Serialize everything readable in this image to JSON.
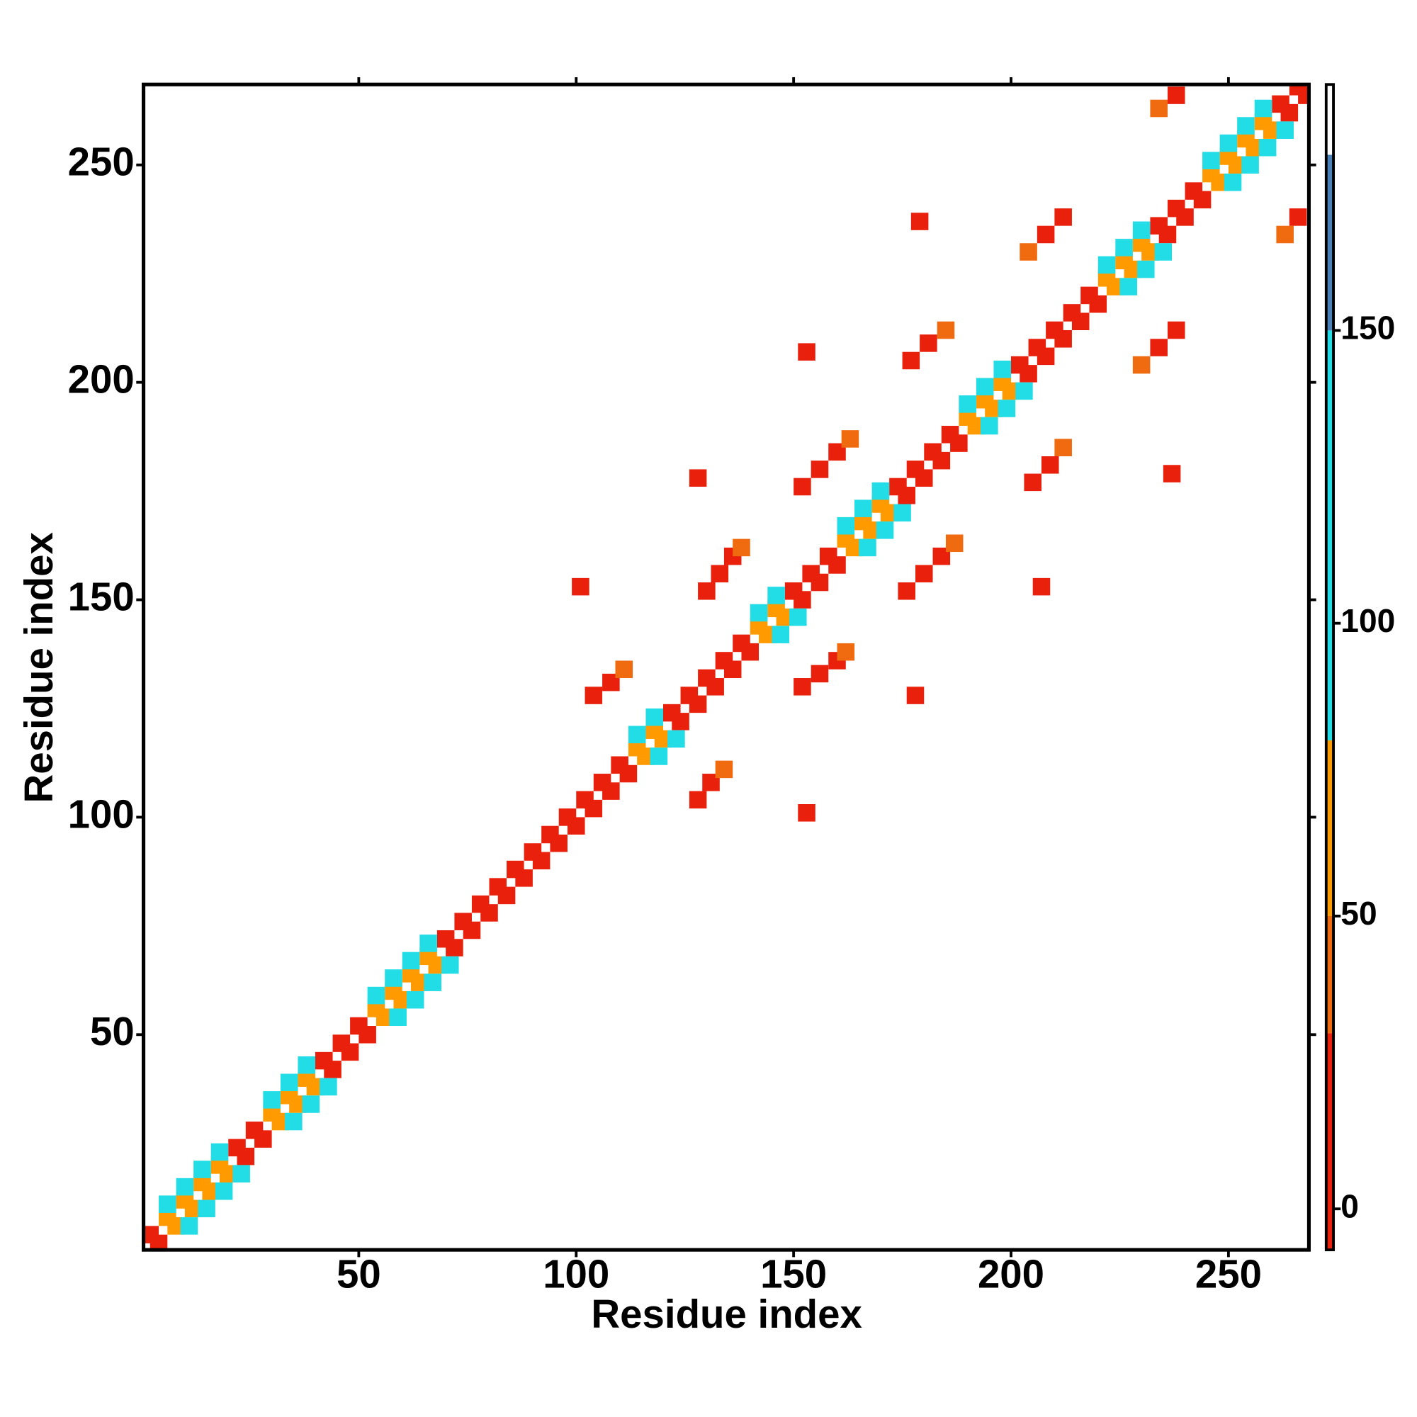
{
  "chart_data": {
    "type": "heatmap",
    "xlabel": "Residue index",
    "ylabel": "Residue index",
    "xlim": [
      0.5,
      268.5
    ],
    "ylim": [
      0.5,
      268.5
    ],
    "xticks": [
      50,
      100,
      150,
      200,
      250
    ],
    "yticks": [
      50,
      100,
      150,
      200,
      250
    ],
    "colorbar": {
      "lim": [
        -7,
        192
      ],
      "ticks": [
        0,
        50,
        100,
        150
      ],
      "bounds": [
        -7,
        30,
        50,
        80,
        150,
        180,
        192
      ],
      "colors": [
        "#e8200c",
        "#f06a10",
        "#ff9a00",
        "#22dde6",
        "#4a7fb8",
        "#ffffff"
      ]
    },
    "cells": {
      "x": [
        2,
        6,
        10,
        14,
        18,
        22,
        26,
        30,
        34,
        38,
        42,
        46,
        50,
        54,
        58,
        62,
        66,
        70,
        74,
        78,
        82,
        86,
        90,
        94,
        98,
        102,
        106,
        110,
        114,
        118,
        122,
        126,
        130,
        134,
        138,
        142,
        146,
        150,
        154,
        158,
        162,
        166,
        170,
        174,
        178,
        182,
        186,
        190,
        194,
        198,
        202,
        206,
        210,
        214,
        218,
        222,
        226,
        230,
        234,
        238,
        242,
        246,
        250,
        254,
        258,
        262,
        266,
        4,
        8,
        12,
        16,
        20,
        24,
        28,
        32,
        36,
        40,
        44,
        48,
        52,
        56,
        60,
        64,
        68,
        72,
        76,
        80,
        84,
        88,
        92,
        96,
        100,
        104,
        108,
        112,
        116,
        120,
        124,
        128,
        132,
        136,
        140,
        144,
        148,
        152,
        156,
        160,
        164,
        168,
        172,
        176,
        180,
        184,
        188,
        192,
        196,
        200,
        204,
        208,
        212,
        216,
        220,
        224,
        228,
        232,
        236,
        240,
        244,
        248,
        252,
        256,
        260,
        264,
        268,
        6,
        10,
        14,
        18,
        30,
        34,
        38,
        54,
        58,
        62,
        66,
        114,
        118,
        142,
        146,
        162,
        166,
        170,
        190,
        194,
        198,
        222,
        226,
        230,
        246,
        250,
        254,
        258,
        11,
        15,
        19,
        23,
        35,
        39,
        43,
        59,
        63,
        67,
        71,
        119,
        123,
        147,
        151,
        167,
        171,
        175,
        195,
        199,
        203,
        227,
        231,
        235,
        251,
        255,
        259,
        263,
        130,
        133,
        136,
        138,
        104,
        108,
        111,
        152,
        156,
        160,
        163,
        177,
        181,
        185,
        204,
        208,
        212,
        234,
        238,
        128,
        101,
        153,
        179,
        152,
        156,
        160,
        162,
        128,
        131,
        134,
        176,
        180,
        184,
        187,
        205,
        209,
        212,
        230,
        234,
        238,
        263,
        266,
        178,
        153,
        207,
        237
      ],
      "y": [
        4,
        8,
        12,
        16,
        20,
        24,
        28,
        32,
        36,
        40,
        44,
        48,
        52,
        56,
        60,
        64,
        68,
        72,
        76,
        80,
        84,
        88,
        92,
        96,
        100,
        104,
        108,
        112,
        116,
        120,
        124,
        128,
        132,
        136,
        140,
        144,
        148,
        152,
        156,
        160,
        164,
        168,
        172,
        176,
        180,
        184,
        188,
        192,
        196,
        200,
        204,
        208,
        212,
        216,
        220,
        224,
        228,
        232,
        236,
        240,
        244,
        248,
        252,
        256,
        260,
        264,
        268,
        2,
        6,
        10,
        14,
        18,
        22,
        26,
        30,
        34,
        38,
        42,
        46,
        50,
        54,
        58,
        62,
        66,
        70,
        74,
        78,
        82,
        86,
        90,
        94,
        98,
        102,
        106,
        110,
        114,
        118,
        122,
        126,
        130,
        134,
        138,
        142,
        146,
        150,
        154,
        158,
        162,
        166,
        170,
        174,
        178,
        182,
        186,
        190,
        194,
        198,
        202,
        206,
        210,
        214,
        218,
        222,
        226,
        230,
        234,
        238,
        242,
        246,
        250,
        254,
        258,
        262,
        266,
        11,
        15,
        19,
        23,
        35,
        39,
        43,
        59,
        63,
        67,
        71,
        119,
        123,
        147,
        151,
        167,
        171,
        175,
        195,
        199,
        203,
        227,
        231,
        235,
        251,
        255,
        259,
        263,
        6,
        10,
        14,
        18,
        30,
        34,
        38,
        54,
        58,
        62,
        66,
        114,
        118,
        142,
        146,
        162,
        166,
        170,
        190,
        194,
        198,
        222,
        226,
        230,
        246,
        250,
        254,
        258,
        152,
        156,
        160,
        162,
        128,
        131,
        134,
        176,
        180,
        184,
        187,
        205,
        209,
        212,
        230,
        234,
        238,
        263,
        266,
        178,
        153,
        207,
        237,
        130,
        133,
        136,
        138,
        104,
        108,
        111,
        152,
        156,
        160,
        163,
        177,
        181,
        185,
        204,
        208,
        212,
        234,
        238,
        128,
        101,
        153,
        179
      ],
      "values": [
        20,
        60,
        60,
        60,
        60,
        20,
        20,
        60,
        60,
        60,
        20,
        20,
        20,
        60,
        60,
        60,
        60,
        20,
        20,
        20,
        20,
        20,
        20,
        20,
        20,
        20,
        20,
        20,
        60,
        60,
        20,
        20,
        20,
        20,
        20,
        60,
        60,
        20,
        20,
        20,
        60,
        60,
        60,
        20,
        20,
        20,
        20,
        60,
        60,
        60,
        20,
        20,
        20,
        20,
        20,
        60,
        60,
        60,
        20,
        20,
        20,
        60,
        60,
        60,
        60,
        20,
        20,
        20,
        60,
        60,
        60,
        60,
        20,
        20,
        60,
        60,
        60,
        20,
        20,
        20,
        60,
        60,
        60,
        60,
        20,
        20,
        20,
        20,
        20,
        20,
        20,
        20,
        20,
        20,
        20,
        60,
        60,
        20,
        20,
        20,
        20,
        20,
        60,
        60,
        20,
        20,
        20,
        60,
        60,
        60,
        20,
        20,
        20,
        20,
        60,
        60,
        60,
        20,
        20,
        20,
        20,
        20,
        60,
        60,
        60,
        20,
        20,
        20,
        60,
        60,
        60,
        60,
        20,
        20,
        110,
        110,
        110,
        110,
        110,
        110,
        110,
        110,
        110,
        110,
        110,
        110,
        110,
        110,
        110,
        110,
        110,
        110,
        110,
        110,
        110,
        110,
        110,
        110,
        110,
        110,
        110,
        110,
        110,
        110,
        110,
        110,
        110,
        110,
        110,
        110,
        110,
        110,
        110,
        110,
        110,
        110,
        110,
        110,
        110,
        110,
        110,
        110,
        110,
        110,
        110,
        110,
        110,
        110,
        110,
        110,
        10,
        5,
        20,
        40,
        10,
        15,
        40,
        10,
        5,
        10,
        40,
        10,
        5,
        30,
        40,
        10,
        20,
        40,
        10,
        10,
        10,
        10,
        10,
        10,
        5,
        20,
        40,
        10,
        15,
        40,
        10,
        5,
        10,
        40,
        10,
        5,
        30,
        40,
        10,
        20,
        40,
        10,
        10,
        10,
        10,
        10
      ]
    }
  }
}
